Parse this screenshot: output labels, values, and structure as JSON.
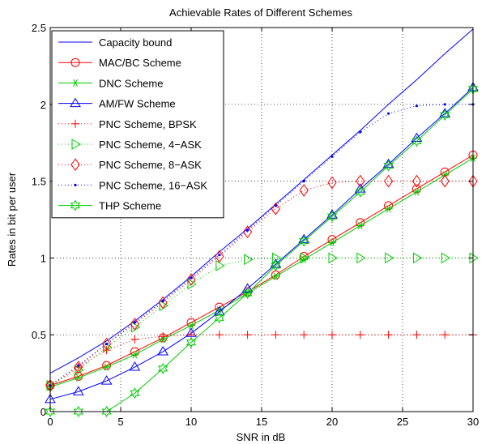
{
  "chart_data": {
    "type": "line",
    "title": "Achievable Rates of Different Schemes",
    "xlabel": "SNR in dB",
    "ylabel": "Rates in bit per user",
    "xlim": [
      0,
      30
    ],
    "ylim": [
      0,
      2.5
    ],
    "xticks": [
      0,
      5,
      10,
      15,
      20,
      25,
      30
    ],
    "yticks": [
      0,
      0.5,
      1,
      1.5,
      2,
      2.5
    ],
    "xtick_labels": [
      "0",
      "5",
      "10",
      "15",
      "20",
      "25",
      "30"
    ],
    "ytick_labels": [
      "0",
      "0.5",
      "1",
      "1.5",
      "2",
      "2.5"
    ],
    "grid": true,
    "grid_style": "dotted",
    "legend_position": "top-left",
    "x": [
      0,
      2,
      4,
      6,
      8,
      10,
      12,
      14,
      16,
      18,
      20,
      22,
      24,
      26,
      28,
      30
    ],
    "series": [
      {
        "name": "Capacity bound",
        "color": "#0000ff",
        "line": "solid",
        "marker": "none",
        "x": [
          0,
          2,
          4,
          6,
          8,
          10,
          12,
          14,
          16,
          18,
          20,
          22,
          24,
          26,
          28,
          30
        ],
        "values": [
          0.25,
          0.35,
          0.46,
          0.59,
          0.73,
          0.88,
          1.04,
          1.19,
          1.35,
          1.51,
          1.67,
          1.83,
          2.0,
          2.16,
          2.33,
          2.49
        ]
      },
      {
        "name": "MAC/BC Scheme",
        "color": "#ff0000",
        "line": "solid",
        "marker": "circle",
        "x": [
          0,
          2,
          4,
          6,
          8,
          10,
          12,
          14,
          16,
          18,
          20,
          22,
          24,
          26,
          28,
          30
        ],
        "values": [
          0.17,
          0.23,
          0.3,
          0.39,
          0.48,
          0.58,
          0.68,
          0.78,
          0.89,
          1.01,
          1.12,
          1.23,
          1.34,
          1.45,
          1.56,
          1.67
        ]
      },
      {
        "name": "DNC Scheme",
        "color": "#00cc00",
        "line": "solid",
        "marker": "asterisk",
        "x": [
          0,
          2,
          4,
          6,
          8,
          10,
          12,
          14,
          16,
          18,
          20,
          22,
          24,
          26,
          28,
          30
        ],
        "values": [
          0.16,
          0.22,
          0.29,
          0.37,
          0.47,
          0.56,
          0.66,
          0.77,
          0.88,
          0.99,
          1.1,
          1.21,
          1.32,
          1.43,
          1.54,
          1.65
        ]
      },
      {
        "name": "AM/FW Scheme",
        "color": "#0000ff",
        "line": "solid",
        "marker": "triangle",
        "x": [
          0,
          2,
          4,
          6,
          8,
          10,
          12,
          14,
          16,
          18,
          20,
          22,
          24,
          26,
          28,
          30
        ],
        "values": [
          0.08,
          0.13,
          0.2,
          0.29,
          0.39,
          0.51,
          0.65,
          0.8,
          0.96,
          1.12,
          1.28,
          1.45,
          1.61,
          1.78,
          1.94,
          2.11
        ]
      },
      {
        "name": "PNC Scheme, BPSK",
        "color": "#ff0000",
        "line": "dotted",
        "marker": "plus",
        "x": [
          0,
          2,
          4,
          6,
          8,
          10,
          12,
          14,
          16,
          18,
          20,
          22,
          24,
          26,
          28,
          30
        ],
        "values": [
          0.17,
          0.29,
          0.4,
          0.47,
          0.49,
          0.5,
          0.5,
          0.5,
          0.5,
          0.5,
          0.5,
          0.5,
          0.5,
          0.5,
          0.5,
          0.5
        ]
      },
      {
        "name": "PNC Scheme, 4−ASK",
        "color": "#00cc00",
        "line": "dotted",
        "marker": "triangle-right",
        "x": [
          0,
          2,
          4,
          6,
          8,
          10,
          12,
          14,
          16,
          18,
          20,
          22,
          24,
          26,
          28,
          30
        ],
        "values": [
          0.17,
          0.27,
          0.42,
          0.55,
          0.69,
          0.83,
          0.95,
          0.99,
          1.0,
          1.0,
          1.0,
          1.0,
          1.0,
          1.0,
          1.0,
          1.0
        ]
      },
      {
        "name": "PNC Scheme, 8−ASK",
        "color": "#ff0000",
        "line": "dotted",
        "marker": "diamond",
        "x": [
          0,
          2,
          4,
          6,
          8,
          10,
          12,
          14,
          16,
          18,
          20,
          22,
          24,
          26,
          28,
          30
        ],
        "values": [
          0.17,
          0.29,
          0.44,
          0.57,
          0.71,
          0.86,
          1.01,
          1.17,
          1.32,
          1.44,
          1.49,
          1.5,
          1.5,
          1.5,
          1.5,
          1.5
        ]
      },
      {
        "name": "PNC Scheme, 16−ASK",
        "color": "#0000ff",
        "line": "dotted",
        "marker": "dot",
        "x": [
          0,
          2,
          4,
          6,
          8,
          10,
          12,
          14,
          16,
          18,
          20,
          22,
          24,
          26,
          28,
          30
        ],
        "values": [
          0.17,
          0.3,
          0.44,
          0.58,
          0.72,
          0.87,
          1.02,
          1.18,
          1.34,
          1.5,
          1.66,
          1.82,
          1.94,
          1.99,
          2.0,
          2.0
        ]
      },
      {
        "name": "THP Scheme",
        "color": "#00cc00",
        "line": "solid",
        "marker": "hexagram",
        "x": [
          0,
          2,
          4,
          6,
          8,
          10,
          12,
          14,
          16,
          18,
          20,
          22,
          24,
          26,
          28,
          30
        ],
        "values": [
          0.0,
          0.0,
          0.0,
          0.12,
          0.28,
          0.45,
          0.61,
          0.77,
          0.95,
          1.11,
          1.27,
          1.43,
          1.6,
          1.76,
          1.93,
          2.1
        ]
      }
    ]
  }
}
